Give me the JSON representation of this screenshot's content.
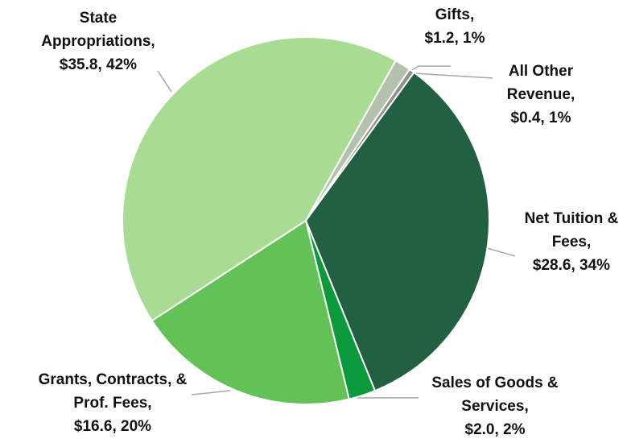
{
  "chart_data": {
    "type": "pie",
    "categories": [
      "State Appropriations,",
      "Gifts,",
      "All Other Revenue,",
      "Net Tuition & Fees,",
      "Sales of Goods & Services,",
      "Grants, Contracts, & Prof. Fees,"
    ],
    "values": [
      35.8,
      1.2,
      0.4,
      28.6,
      2.0,
      16.6
    ],
    "value_labels": [
      "$35.8, 42%",
      "$1.2, 1%",
      "$0.4, 1%",
      "$28.6, 34%",
      "$2.0, 2%",
      "$16.6, 20%"
    ],
    "colors": [
      "#a9dc93",
      "#b3c2ab",
      "#8f8f8f",
      "#216040",
      "#0b9a3b",
      "#63c256"
    ]
  }
}
